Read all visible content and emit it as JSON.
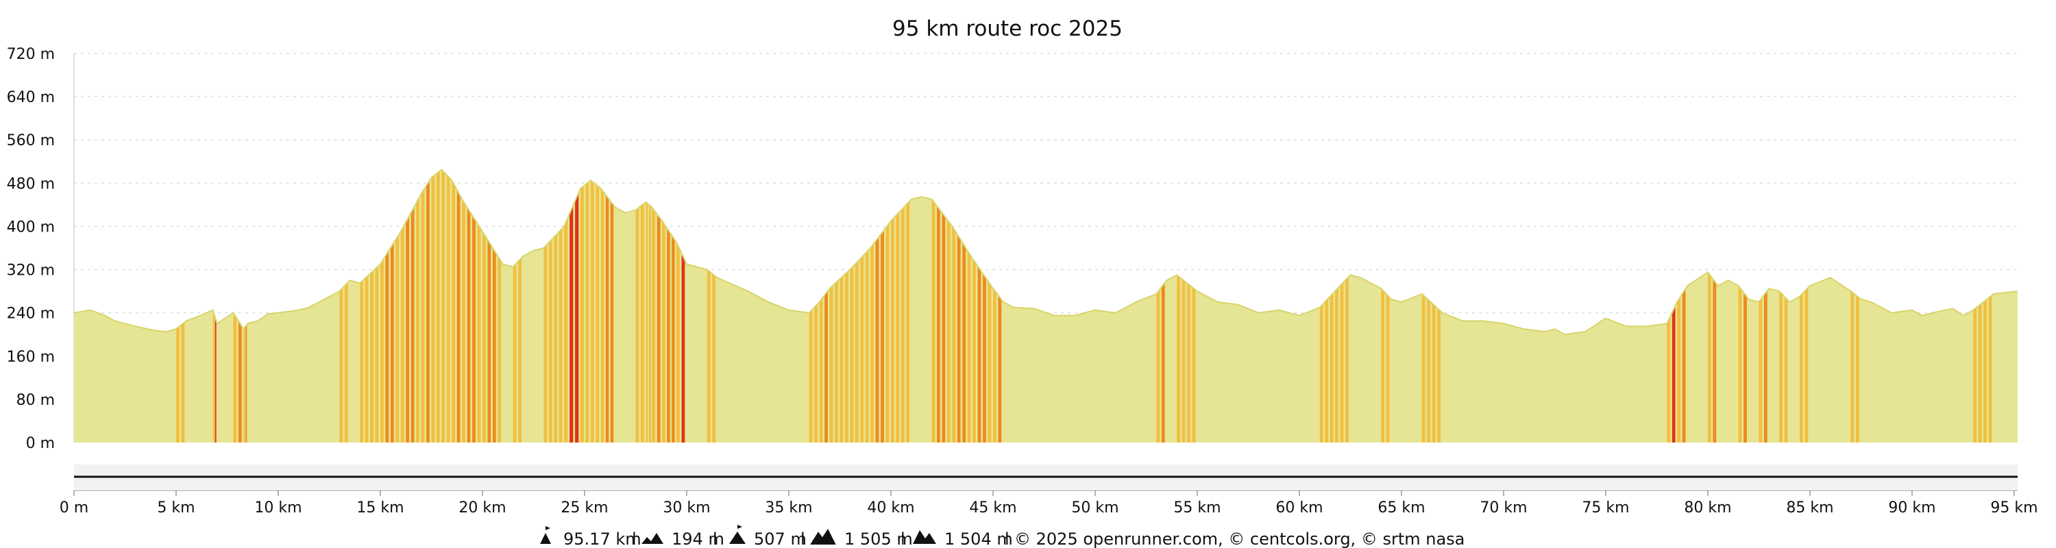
{
  "chart_data": {
    "type": "area",
    "title": "95 km route roc 2025",
    "xlabel": "",
    "ylabel": "",
    "xlim": [
      0,
      95.17
    ],
    "ylim": [
      0,
      720
    ],
    "grid": true,
    "x_ticks": [
      0,
      5,
      10,
      15,
      20,
      25,
      30,
      35,
      40,
      45,
      50,
      55,
      60,
      65,
      70,
      75,
      80,
      85,
      90,
      95
    ],
    "x_tick_labels": [
      "0 m",
      "5 km",
      "10 km",
      "15 km",
      "20 km",
      "25 km",
      "30 km",
      "35 km",
      "40 km",
      "45 km",
      "50 km",
      "55 km",
      "60 km",
      "65 km",
      "70 km",
      "75 km",
      "80 km",
      "85 km",
      "90 km",
      "95 km"
    ],
    "y_ticks": [
      0,
      80,
      160,
      240,
      320,
      400,
      480,
      560,
      640,
      720
    ],
    "y_tick_labels": [
      "0 m",
      "80 m",
      "160 m",
      "240 m",
      "320 m",
      "400 m",
      "480 m",
      "560 m",
      "640 m",
      "720 m"
    ],
    "series": [
      {
        "distance_km": [
          0,
          0.8,
          1.5,
          2,
          3,
          4,
          4.5,
          5,
          5.5,
          6,
          6.8,
          7,
          7.6,
          7.8,
          8.3,
          8.5,
          9,
          9.5,
          10,
          11,
          11.5,
          12,
          12.5,
          13,
          13.5,
          14,
          15,
          16,
          17,
          17.5,
          18,
          18.5,
          19,
          20,
          21,
          21.5,
          22,
          22.5,
          23,
          24,
          24.8,
          25.3,
          25.8,
          26.5,
          27,
          27.5,
          28,
          28.3,
          28.8,
          29.5,
          30,
          31,
          31.5,
          33,
          34,
          35,
          36,
          36.5,
          37,
          38,
          39,
          40,
          41,
          41.5,
          42,
          43,
          44,
          45,
          45.5,
          46,
          47,
          48,
          49,
          50,
          51,
          52,
          53,
          53.5,
          54,
          55,
          56,
          57,
          58,
          59,
          60,
          61,
          62,
          62.5,
          63,
          64,
          64.5,
          65,
          66,
          67,
          68,
          69,
          70,
          71,
          72,
          72.5,
          73,
          74,
          75,
          76,
          77,
          78,
          78.5,
          79,
          80,
          80.5,
          81,
          81.5,
          82,
          82.5,
          83,
          83.5,
          84,
          84.5,
          85,
          86,
          87,
          87.5,
          88,
          88.5,
          89,
          90,
          90.5,
          91,
          92,
          92.5,
          93,
          93.5,
          94,
          95.17
        ],
        "elevation_m": [
          240,
          245,
          235,
          225,
          215,
          207,
          205,
          210,
          225,
          232,
          245,
          220,
          235,
          240,
          210,
          220,
          225,
          238,
          240,
          245,
          250,
          260,
          270,
          280,
          300,
          295,
          330,
          390,
          460,
          490,
          505,
          485,
          450,
          390,
          330,
          325,
          345,
          355,
          360,
          400,
          470,
          485,
          470,
          435,
          425,
          430,
          445,
          435,
          410,
          370,
          330,
          320,
          305,
          280,
          260,
          245,
          240,
          260,
          285,
          320,
          360,
          410,
          450,
          455,
          450,
          400,
          340,
          285,
          260,
          250,
          248,
          235,
          235,
          245,
          240,
          260,
          275,
          300,
          310,
          280,
          260,
          255,
          240,
          245,
          235,
          250,
          290,
          310,
          305,
          285,
          265,
          260,
          275,
          240,
          225,
          225,
          220,
          210,
          205,
          210,
          200,
          205,
          230,
          215,
          215,
          220,
          260,
          290,
          315,
          290,
          300,
          290,
          265,
          260,
          285,
          280,
          260,
          270,
          290,
          305,
          280,
          265,
          260,
          250,
          240,
          245,
          235,
          240,
          248,
          235,
          245,
          260,
          275,
          280,
          250,
          245
        ]
      }
    ],
    "gradient_colors": {
      "flat": "#e6e594",
      "moderate": "#f2bf3f",
      "steep": "#ee8a1d",
      "very_steep": "#e1341a"
    }
  },
  "footer": {
    "distance": "95.17 km",
    "min_elevation": "194 m",
    "max_elevation": "507 m",
    "ascent": "1 505 m",
    "descent": "1 504 m",
    "credits": "© 2025 openrunner.com, © centcols.org, © srtm nasa"
  }
}
